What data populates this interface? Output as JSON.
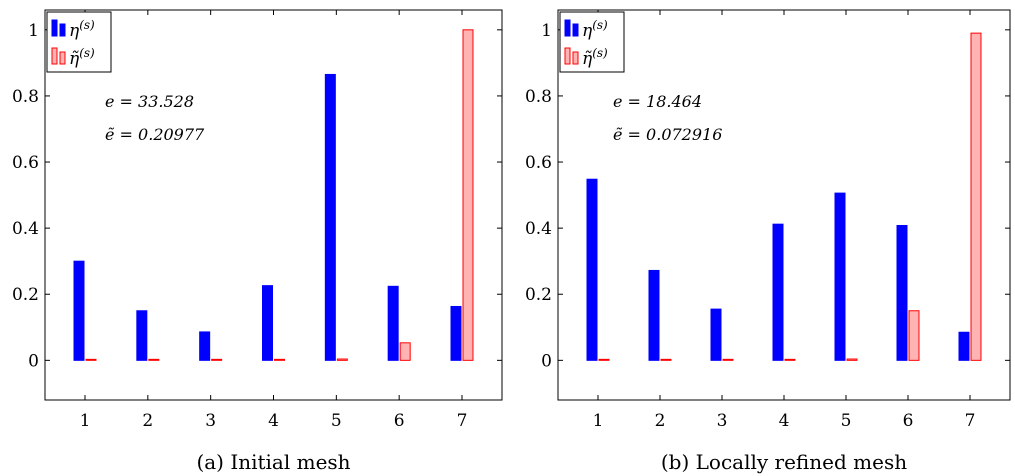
{
  "chart_data": [
    {
      "type": "bar",
      "caption": "(a) Initial mesh",
      "categories": [
        "1",
        "2",
        "3",
        "4",
        "5",
        "6",
        "7"
      ],
      "series": [
        {
          "name": "η(s)",
          "legend_label": "η(s)",
          "color": "#0000ff",
          "fill": "#0000ff",
          "values": [
            0.3,
            0.15,
            0.086,
            0.226,
            0.865,
            0.224,
            0.163
          ]
        },
        {
          "name": "η̃(s)",
          "legend_label": "η̃(s)",
          "color": "#ff0000",
          "fill": "#ffb3b3",
          "values": [
            0.002,
            0.002,
            0.002,
            0.003,
            0.004,
            0.053,
            1.0
          ]
        }
      ],
      "annotations": [
        "e = 33.528",
        "ẽ = 0.20977"
      ],
      "ylim": [
        -0.12,
        1.06
      ],
      "yticks": [
        0,
        0.2,
        0.4,
        0.6,
        0.8,
        1
      ],
      "ytick_labels": [
        "0",
        "0.2",
        "0.4",
        "0.6",
        "0.8",
        "1"
      ],
      "legend_position": "top-left",
      "grid": false
    },
    {
      "type": "bar",
      "caption": "(b) Locally refined mesh",
      "categories": [
        "1",
        "2",
        "3",
        "4",
        "5",
        "6",
        "7"
      ],
      "series": [
        {
          "name": "η(s)",
          "legend_label": "η(s)",
          "color": "#0000ff",
          "fill": "#0000ff",
          "values": [
            0.548,
            0.272,
            0.155,
            0.412,
            0.506,
            0.408,
            0.085
          ]
        },
        {
          "name": "η̃(s)",
          "legend_label": "η̃(s)",
          "color": "#ff0000",
          "fill": "#ffb3b3",
          "values": [
            0.002,
            0.002,
            0.002,
            0.003,
            0.004,
            0.15,
            0.99
          ]
        }
      ],
      "annotations": [
        "e = 18.464",
        "ẽ = 0.072916"
      ],
      "ylim": [
        -0.12,
        1.06
      ],
      "yticks": [
        0,
        0.2,
        0.4,
        0.6,
        0.8,
        1
      ],
      "ytick_labels": [
        "0",
        "0.2",
        "0.4",
        "0.6",
        "0.8",
        "1"
      ],
      "legend_position": "top-left",
      "grid": false
    }
  ]
}
